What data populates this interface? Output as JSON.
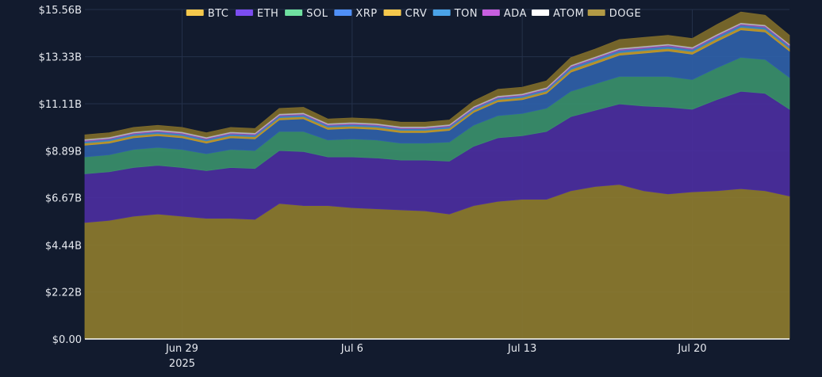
{
  "chart_data": {
    "type": "area",
    "stacked": true,
    "title": "",
    "xlabel": "",
    "ylabel": "",
    "ylim": [
      0,
      15.56
    ],
    "y_unit": "B USD",
    "y_ticks": [
      0,
      2.22,
      4.44,
      6.67,
      8.89,
      11.11,
      13.33,
      15.56
    ],
    "y_tick_labels": [
      "$0.00",
      "$2.22B",
      "$4.44B",
      "$6.67B",
      "$8.89B",
      "$11.11B",
      "$13.33B",
      "$15.56B"
    ],
    "x": [
      "2025-06-25",
      "2025-06-26",
      "2025-06-27",
      "2025-06-28",
      "2025-06-29",
      "2025-06-30",
      "2025-07-01",
      "2025-07-02",
      "2025-07-03",
      "2025-07-04",
      "2025-07-05",
      "2025-07-06",
      "2025-07-07",
      "2025-07-08",
      "2025-07-09",
      "2025-07-10",
      "2025-07-11",
      "2025-07-12",
      "2025-07-13",
      "2025-07-14",
      "2025-07-15",
      "2025-07-16",
      "2025-07-17",
      "2025-07-18",
      "2025-07-19",
      "2025-07-20",
      "2025-07-21",
      "2025-07-22",
      "2025-07-23",
      "2025-07-24"
    ],
    "x_ticks": [
      {
        "date": "2025-06-29",
        "label": "Jun 29",
        "sublabel": "2025"
      },
      {
        "date": "2025-07-06",
        "label": "Jul 6",
        "sublabel": ""
      },
      {
        "date": "2025-07-13",
        "label": "Jul 13",
        "sublabel": ""
      },
      {
        "date": "2025-07-20",
        "label": "Jul 20",
        "sublabel": ""
      }
    ],
    "grid": true,
    "legend_position": "top",
    "series": [
      {
        "name": "DOGE",
        "color": "#8c7a2e",
        "values": [
          5.5,
          5.6,
          5.8,
          5.9,
          5.8,
          5.7,
          5.7,
          5.65,
          6.4,
          6.3,
          6.3,
          6.2,
          6.15,
          6.1,
          6.05,
          5.9,
          6.3,
          6.5,
          6.6,
          6.6,
          7.0,
          7.2,
          7.3,
          7.0,
          6.85,
          6.95,
          7.0,
          7.1,
          7.0,
          6.75
        ]
      },
      {
        "name": "ETH",
        "color": "#4b2e9e",
        "values": [
          2.3,
          2.3,
          2.3,
          2.3,
          2.3,
          2.25,
          2.4,
          2.4,
          2.5,
          2.55,
          2.3,
          2.4,
          2.4,
          2.35,
          2.4,
          2.5,
          2.8,
          3.0,
          3.0,
          3.2,
          3.5,
          3.6,
          3.8,
          4.0,
          4.1,
          3.9,
          4.3,
          4.6,
          4.6,
          4.1
        ]
      },
      {
        "name": "SOL",
        "color": "#3a8f6b",
        "values": [
          0.8,
          0.8,
          0.85,
          0.85,
          0.85,
          0.8,
          0.85,
          0.85,
          0.9,
          0.95,
          0.8,
          0.85,
          0.85,
          0.8,
          0.8,
          0.9,
          1.0,
          1.05,
          1.05,
          1.1,
          1.2,
          1.25,
          1.3,
          1.4,
          1.45,
          1.4,
          1.5,
          1.6,
          1.6,
          1.5
        ]
      },
      {
        "name": "XRP",
        "color": "#2f5fa8",
        "values": [
          0.55,
          0.55,
          0.55,
          0.55,
          0.55,
          0.5,
          0.55,
          0.55,
          0.55,
          0.6,
          0.5,
          0.5,
          0.5,
          0.5,
          0.5,
          0.55,
          0.6,
          0.65,
          0.65,
          0.7,
          0.9,
          0.95,
          1.0,
          1.1,
          1.2,
          1.2,
          1.25,
          1.3,
          1.3,
          1.25
        ]
      },
      {
        "name": "CRV",
        "color": "#c29a2a",
        "values": [
          0.1,
          0.1,
          0.1,
          0.1,
          0.1,
          0.1,
          0.1,
          0.1,
          0.1,
          0.1,
          0.1,
          0.1,
          0.1,
          0.1,
          0.1,
          0.1,
          0.1,
          0.1,
          0.1,
          0.1,
          0.12,
          0.12,
          0.12,
          0.12,
          0.12,
          0.12,
          0.12,
          0.12,
          0.12,
          0.12
        ]
      },
      {
        "name": "TON",
        "color": "#3d87c6",
        "values": [
          0.08,
          0.08,
          0.08,
          0.08,
          0.08,
          0.08,
          0.08,
          0.08,
          0.08,
          0.08,
          0.08,
          0.08,
          0.08,
          0.08,
          0.08,
          0.08,
          0.08,
          0.08,
          0.08,
          0.08,
          0.1,
          0.1,
          0.1,
          0.1,
          0.1,
          0.1,
          0.1,
          0.1,
          0.1,
          0.1
        ]
      },
      {
        "name": "ADA",
        "color": "#9a4fb0",
        "values": [
          0.05,
          0.05,
          0.05,
          0.05,
          0.05,
          0.05,
          0.05,
          0.05,
          0.05,
          0.05,
          0.05,
          0.05,
          0.05,
          0.05,
          0.05,
          0.05,
          0.05,
          0.05,
          0.05,
          0.05,
          0.06,
          0.06,
          0.06,
          0.06,
          0.06,
          0.06,
          0.06,
          0.06,
          0.06,
          0.06
        ]
      },
      {
        "name": "ATOM",
        "color": "#b5b8c0",
        "values": [
          0.06,
          0.06,
          0.06,
          0.06,
          0.06,
          0.06,
          0.06,
          0.06,
          0.06,
          0.06,
          0.06,
          0.06,
          0.06,
          0.06,
          0.06,
          0.06,
          0.06,
          0.06,
          0.06,
          0.06,
          0.06,
          0.06,
          0.06,
          0.06,
          0.06,
          0.06,
          0.06,
          0.06,
          0.06,
          0.06
        ]
      },
      {
        "name": "BTC",
        "color": "#7d6a2a",
        "values": [
          0.2,
          0.2,
          0.2,
          0.2,
          0.2,
          0.2,
          0.2,
          0.2,
          0.25,
          0.25,
          0.2,
          0.2,
          0.2,
          0.2,
          0.2,
          0.2,
          0.25,
          0.3,
          0.3,
          0.3,
          0.35,
          0.35,
          0.4,
          0.4,
          0.4,
          0.4,
          0.45,
          0.5,
          0.45,
          0.4
        ]
      }
    ],
    "legend": [
      {
        "name": "BTC",
        "color": "#f5c84c"
      },
      {
        "name": "ETH",
        "color": "#7b4df0"
      },
      {
        "name": "SOL",
        "color": "#6fe0a0"
      },
      {
        "name": "XRP",
        "color": "#4f8ff7"
      },
      {
        "name": "CRV",
        "color": "#f5c84c"
      },
      {
        "name": "TON",
        "color": "#4aa3e8"
      },
      {
        "name": "ADA",
        "color": "#c75fe0"
      },
      {
        "name": "ATOM",
        "color": "#ffffff"
      },
      {
        "name": "DOGE",
        "color": "#b29a45"
      }
    ]
  }
}
